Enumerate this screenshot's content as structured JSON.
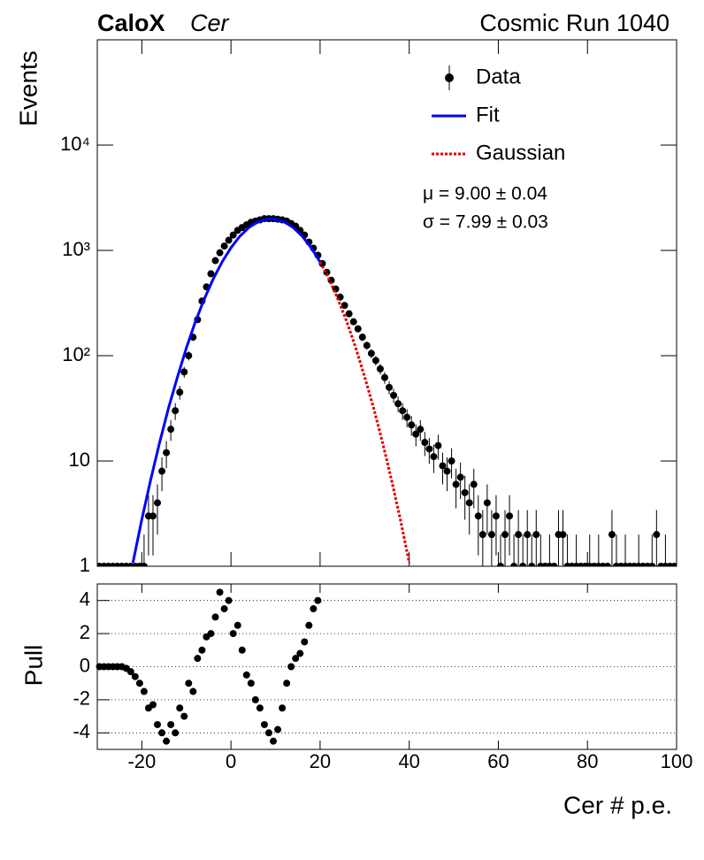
{
  "chart_data": [
    {
      "type": "errorbar",
      "title": "CaloX",
      "subtitle": "Cer",
      "annotation": "Cosmic Run 1040",
      "ylabel": "Events",
      "log_y": true,
      "legend": "upper right",
      "xlim": [
        -30,
        100
      ],
      "ylim": [
        1,
        100000
      ],
      "yticks": [
        1,
        10,
        {
          "value": 100,
          "label": "10²"
        },
        {
          "value": 1000,
          "label": "10³"
        },
        {
          "value": 10000,
          "label": "10⁴"
        }
      ],
      "x": [
        -29.5,
        -28.5,
        -27.5,
        -26.5,
        -25.5,
        -24.5,
        -23.5,
        -22.5,
        -21.5,
        -20.5,
        -19.5,
        -18.5,
        -17.5,
        -16.5,
        -15.5,
        -14.5,
        -13.5,
        -12.5,
        -11.5,
        -10.5,
        -9.5,
        -8.5,
        -7.5,
        -6.5,
        -5.5,
        -4.5,
        -3.5,
        -2.5,
        -1.5,
        -0.5,
        0.5,
        1.5,
        2.5,
        3.5,
        4.5,
        5.5,
        6.5,
        7.5,
        8.5,
        9.5,
        10.5,
        11.5,
        12.5,
        13.5,
        14.5,
        15.5,
        16.5,
        17.5,
        18.5,
        19.5,
        20.5,
        21.5,
        22.5,
        23.5,
        24.5,
        25.5,
        26.5,
        27.5,
        28.5,
        29.5,
        30.5,
        31.5,
        32.5,
        33.5,
        34.5,
        35.5,
        36.5,
        37.5,
        38.5,
        39.5,
        40.5,
        41.5,
        42.5,
        43.5,
        44.5,
        45.5,
        46.5,
        47.5,
        48.5,
        49.5,
        50.5,
        51.5,
        52.5,
        53.5,
        54.5,
        55.5,
        56.5,
        57.5,
        58.5,
        59.5,
        60.5,
        61.5,
        62.5,
        63.5,
        64.5,
        65.5,
        66.5,
        67.5,
        68.5,
        69.5,
        70.5,
        71.5,
        72.5,
        73.5,
        74.5,
        75.5,
        76.5,
        77.5,
        78.5,
        79.5,
        80.5,
        81.5,
        82.5,
        83.5,
        84.5,
        85.5,
        86.5,
        87.5,
        88.5,
        89.5,
        90.5,
        91.5,
        92.5,
        93.5,
        94.5,
        95.5,
        96.5,
        97.5,
        98.5,
        99.5
      ],
      "series": [
        {
          "name": "Data",
          "color": "#000000",
          "values": [
            0,
            0,
            0,
            0,
            0,
            0,
            0,
            0,
            0,
            0,
            1,
            3,
            3,
            4,
            8,
            12,
            20,
            30,
            45,
            70,
            100,
            150,
            220,
            330,
            450,
            600,
            800,
            950,
            1100,
            1250,
            1400,
            1550,
            1650,
            1750,
            1850,
            1900,
            1950,
            2000,
            2000,
            2000,
            1980,
            1950,
            1900,
            1800,
            1700,
            1550,
            1400,
            1200,
            1050,
            900,
            750,
            620,
            520,
            430,
            360,
            300,
            250,
            210,
            180,
            150,
            125,
            105,
            90,
            75,
            62,
            50,
            42,
            35,
            30,
            26,
            22,
            18,
            20,
            15,
            13,
            11,
            14,
            9,
            8,
            10,
            6,
            7,
            5,
            4,
            6,
            3,
            2,
            4,
            2,
            3,
            1,
            2,
            3,
            1,
            2,
            1,
            2,
            1,
            2,
            1,
            0,
            1,
            0,
            2,
            2,
            1,
            0,
            1,
            0,
            0,
            1,
            0,
            1,
            0,
            0,
            2,
            1,
            0,
            1,
            0,
            0,
            1,
            0,
            0,
            1,
            2,
            0,
            1,
            0,
            0
          ]
        },
        {
          "name": "Fit",
          "color": "#0000ff",
          "x": [
            -22,
            -20,
            -18,
            -16,
            -14,
            -12,
            -10,
            -8,
            -6,
            -4,
            -2,
            0,
            2,
            4,
            6,
            8,
            10,
            12,
            14,
            16,
            18,
            20
          ],
          "values": [
            1.08,
            2.8,
            6.7,
            15,
            32,
            63,
            119,
            209,
            344,
            534,
            776,
            1061,
            1363,
            1644,
            1865,
            1984,
            1984,
            1865,
            1644,
            1363,
            1061,
            776
          ]
        },
        {
          "name": "Gaussian",
          "color": "#dd0000",
          "dotted": true,
          "x": [
            20,
            22,
            24,
            26,
            28,
            30,
            32,
            34,
            36,
            38,
            40
          ],
          "values": [
            776,
            534,
            344,
            209,
            119,
            63,
            32,
            15,
            6.7,
            2.8,
            1.08
          ]
        }
      ],
      "annotations": [
        "μ = 9.00 ± 0.04",
        "σ = 7.99 ± 0.03"
      ]
    },
    {
      "type": "pull",
      "ylabel": "Pull",
      "xlabel": "Cer # p.e.",
      "grid": true,
      "xlim": [
        -30,
        100
      ],
      "xticks": [
        -20,
        0,
        20,
        40,
        60,
        80,
        100
      ],
      "ylim": [
        -5,
        5
      ],
      "yticks": [
        -4,
        -2,
        0,
        2,
        4
      ],
      "x": [
        -29.5,
        -28.5,
        -27.5,
        -26.5,
        -25.5,
        -24.5,
        -23.5,
        -22.5,
        -21.5,
        -20.5,
        -19.5,
        -18.5,
        -17.5,
        -16.5,
        -15.5,
        -14.5,
        -13.5,
        -12.5,
        -11.5,
        -10.5,
        -9.5,
        -8.5,
        -7.5,
        -6.5,
        -5.5,
        -4.5,
        -3.5,
        -2.5,
        -1.5,
        -0.5,
        0.5,
        1.5,
        2.5,
        3.5,
        4.5,
        5.5,
        6.5,
        7.5,
        8.5,
        9.5,
        10.5,
        11.5,
        12.5,
        13.5,
        14.5,
        15.5,
        16.5,
        17.5,
        18.5,
        19.5
      ],
      "values": [
        0,
        0,
        0,
        0,
        0,
        0,
        -0.1,
        -0.3,
        -0.6,
        -1.0,
        -1.5,
        -2.5,
        -2.3,
        -3.5,
        -4.0,
        -4.5,
        -3.5,
        -4.0,
        -2.5,
        -3.0,
        -1.0,
        -1.5,
        0.5,
        1.0,
        1.8,
        2.0,
        3.0,
        4.5,
        3.5,
        4.0,
        2.0,
        2.5,
        1.0,
        -0.5,
        -1.0,
        -2.0,
        -2.5,
        -3.5,
        -4.0,
        -4.5,
        -3.8,
        -2.5,
        -1.0,
        0,
        0.5,
        0.8,
        1.5,
        2.5,
        3.5,
        4.0
      ]
    }
  ]
}
